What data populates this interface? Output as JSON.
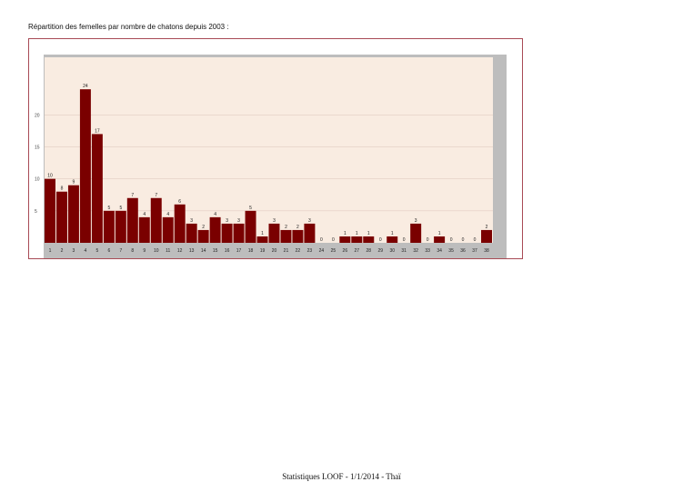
{
  "heading": "Répartition des femelles par nombre de chatons depuis 2003 :",
  "footer": "Statistiques LOOF - 1/1/2014 - Thaï",
  "colors": {
    "bar": "#7a0000",
    "plot_bg": "#f9ece1",
    "frame_bg": "#bdbdbd",
    "border": "#a84a55",
    "grid": "#e2cdc2"
  },
  "chart_data": {
    "type": "bar",
    "title": "",
    "xlabel": "",
    "ylabel": "",
    "ylim": [
      0,
      29
    ],
    "yticks": [
      5,
      10,
      15,
      20
    ],
    "grid": true,
    "categories": [
      "1",
      "2",
      "3",
      "4",
      "5",
      "6",
      "7",
      "8",
      "9",
      "10",
      "11",
      "12",
      "13",
      "14",
      "15",
      "16",
      "17",
      "18",
      "19",
      "20",
      "21",
      "22",
      "23",
      "24",
      "25",
      "26",
      "27",
      "28",
      "29",
      "30",
      "31",
      "32",
      "33",
      "34",
      "35",
      "36",
      "37",
      "38"
    ],
    "values": [
      10,
      8,
      9,
      24,
      17,
      5,
      5,
      7,
      4,
      7,
      4,
      6,
      3,
      2,
      4,
      3,
      3,
      5,
      1,
      3,
      2,
      2,
      3,
      0,
      0,
      1,
      1,
      1,
      0,
      1,
      0,
      3,
      0,
      1,
      0,
      0,
      0,
      2
    ]
  }
}
